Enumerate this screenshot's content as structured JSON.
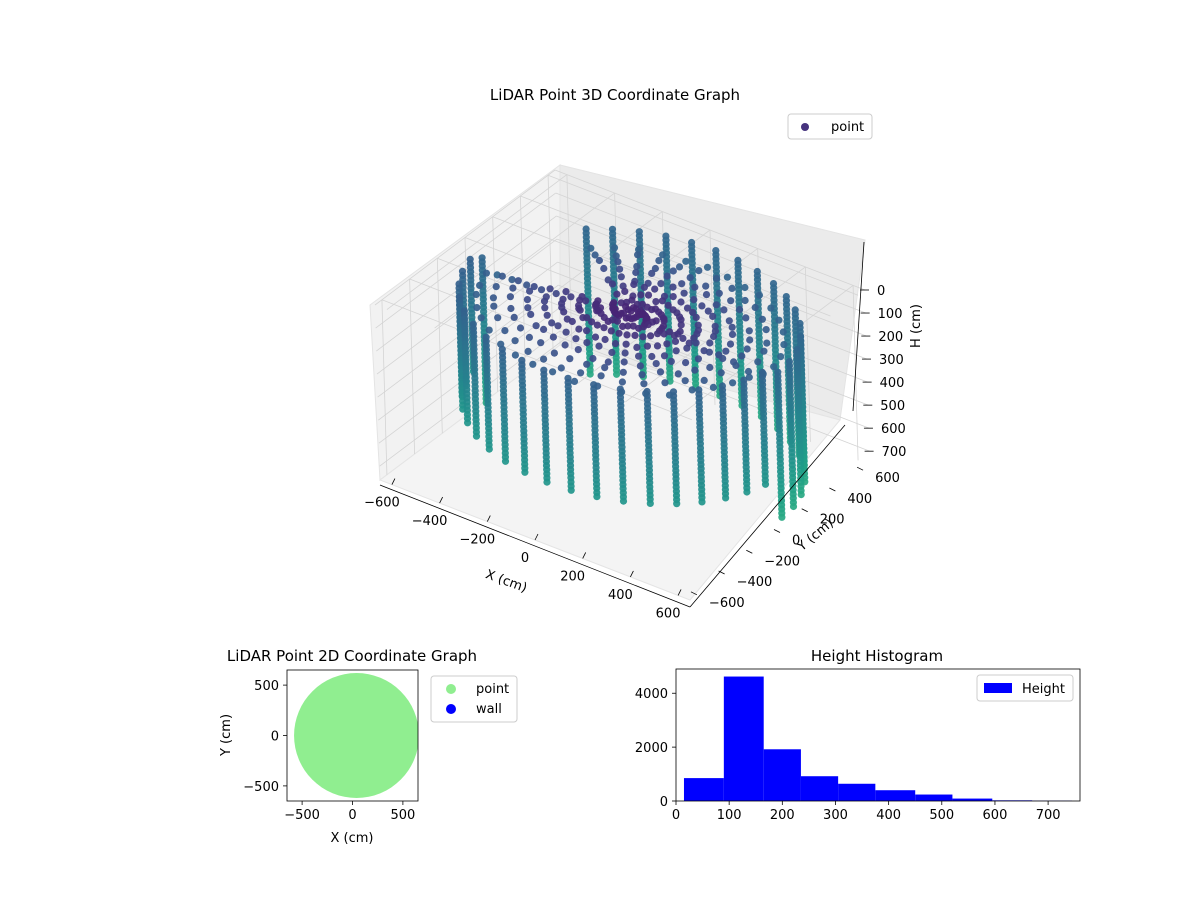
{
  "chart_data": [
    {
      "type": "scatter",
      "projection": "3d",
      "title": "LiDAR Point 3D Coordinate Graph",
      "xlabel": "X (cm)",
      "ylabel": "Y (cm)",
      "zlabel": "H (cm)",
      "xlim": [
        -650,
        650
      ],
      "ylim": [
        -650,
        650
      ],
      "zlim": [
        0,
        760
      ],
      "z_inverted": true,
      "xticks": [
        -600,
        -400,
        -200,
        0,
        200,
        400,
        600
      ],
      "yticks": [
        -600,
        -400,
        -200,
        0,
        200,
        400,
        600
      ],
      "zticks": [
        0,
        100,
        200,
        300,
        400,
        500,
        600,
        700
      ],
      "grid": true,
      "legend": {
        "placement": "upper-right",
        "entries": [
          "point"
        ]
      },
      "colormap": "viridis",
      "series": [
        {
          "name": "point",
          "color": "#46337e",
          "shape": "ring of vertical point columns around the origin plus inward ceiling rays",
          "ring_radius_cm": 620,
          "ring_center_cm": [
            40,
            0
          ],
          "column_count": 40,
          "height_range_far_cm": [
            60,
            700
          ],
          "height_range_near_cm": [
            20,
            520
          ],
          "arc_gap_degrees": [
            135,
            180
          ],
          "points": [
            {
              "x": 600,
              "y": 0,
              "h": 400
            },
            {
              "x": 0,
              "y": 600,
              "h": 300
            },
            {
              "x": -600,
              "y": 200,
              "h": 200
            },
            {
              "x": -300,
              "y": -550,
              "h": 500
            },
            {
              "x": 300,
              "y": -550,
              "h": 650
            },
            {
              "x": 0,
              "y": 0,
              "h": 20
            }
          ]
        }
      ]
    },
    {
      "type": "scatter",
      "title": "LiDAR Point 2D Coordinate Graph",
      "xlabel": "X (cm)",
      "ylabel": "Y (cm)",
      "xlim": [
        -650,
        650
      ],
      "ylim": [
        -650,
        650
      ],
      "xticks": [
        -500,
        0,
        500
      ],
      "yticks": [
        -500,
        0,
        500
      ],
      "legend": {
        "placement": "outside-right"
      },
      "series": [
        {
          "name": "point",
          "color": "#90ee90",
          "shape": "filled disc",
          "radius_cm": 620,
          "center_cm": [
            40,
            0
          ]
        },
        {
          "name": "wall",
          "color": "#0000ff",
          "points": []
        }
      ]
    },
    {
      "type": "bar",
      "subtype": "histogram",
      "title": "Height Histogram",
      "xlim": [
        0,
        760
      ],
      "ylim": [
        0,
        4900
      ],
      "xticks": [
        0,
        100,
        200,
        300,
        400,
        500,
        600,
        700
      ],
      "yticks": [
        0,
        2000,
        4000
      ],
      "legend": {
        "placement": "upper-right"
      },
      "series": [
        {
          "name": "Height",
          "color": "#0000ff",
          "bin_edges": [
            15,
            90,
            165,
            235,
            305,
            375,
            450,
            520,
            595,
            670,
            745
          ],
          "values": [
            850,
            4620,
            1920,
            920,
            640,
            400,
            240,
            90,
            25,
            10
          ]
        }
      ]
    }
  ]
}
